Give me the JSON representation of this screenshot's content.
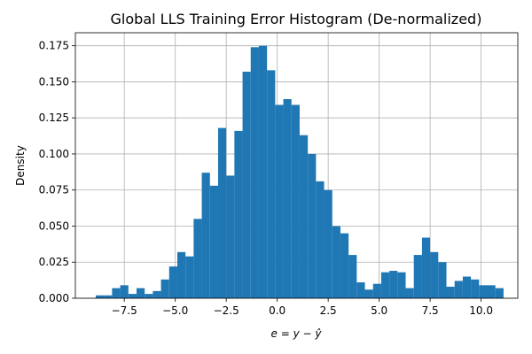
{
  "chart_data": {
    "type": "histogram",
    "title": "Global LLS Training Error Histogram (De-normalized)",
    "xlabel": "e = y − ŷ",
    "ylabel": "Density",
    "xlim": [
      -9.9,
      11.8
    ],
    "ylim": [
      0,
      0.184
    ],
    "grid": true,
    "bar_color": "#1f77b4",
    "x_ticks": [
      {
        "value": -7.5,
        "label": "−7.5"
      },
      {
        "value": -5.0,
        "label": "−5.0"
      },
      {
        "value": -2.5,
        "label": "−2.5"
      },
      {
        "value": 0.0,
        "label": "0.0"
      },
      {
        "value": 2.5,
        "label": "2.5"
      },
      {
        "value": 5.0,
        "label": "5.0"
      },
      {
        "value": 7.5,
        "label": "7.5"
      },
      {
        "value": 10.0,
        "label": "10.0"
      }
    ],
    "y_ticks": [
      {
        "value": 0.0,
        "label": "0.000"
      },
      {
        "value": 0.025,
        "label": "0.025"
      },
      {
        "value": 0.05,
        "label": "0.050"
      },
      {
        "value": 0.075,
        "label": "0.075"
      },
      {
        "value": 0.1,
        "label": "0.100"
      },
      {
        "value": 0.125,
        "label": "0.125"
      },
      {
        "value": 0.15,
        "label": "0.150"
      },
      {
        "value": 0.175,
        "label": "0.175"
      }
    ],
    "bin_start": -8.9,
    "bin_width": 0.4,
    "values": [
      0.002,
      0.002,
      0.007,
      0.009,
      0.003,
      0.007,
      0.003,
      0.005,
      0.013,
      0.022,
      0.032,
      0.029,
      0.055,
      0.087,
      0.078,
      0.118,
      0.085,
      0.116,
      0.157,
      0.174,
      0.175,
      0.158,
      0.134,
      0.138,
      0.134,
      0.113,
      0.1,
      0.081,
      0.075,
      0.05,
      0.045,
      0.03,
      0.011,
      0.006,
      0.01,
      0.018,
      0.019,
      0.018,
      0.007,
      0.03,
      0.042,
      0.032,
      0.025,
      0.008,
      0.012,
      0.015,
      0.013,
      0.009,
      0.009,
      0.007
    ]
  }
}
